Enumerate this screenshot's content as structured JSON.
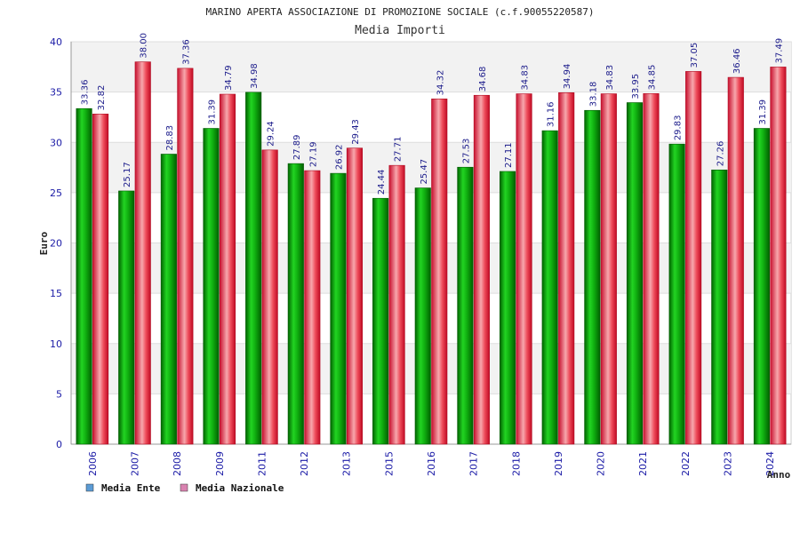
{
  "chart_data": {
    "type": "bar",
    "title": "MARINO APERTA ASSOCIAZIONE DI PROMOZIONE SOCIALE (c.f.90055220587)",
    "subtitle": "Media Importi",
    "xlabel": "Anno",
    "ylabel": "Euro",
    "ylim": [
      0,
      40
    ],
    "yticks": [
      0,
      5,
      10,
      15,
      20,
      25,
      30,
      35,
      40
    ],
    "grid": true,
    "legend_position": "bottom-left",
    "categories": [
      "2006",
      "2007",
      "2008",
      "2009",
      "2011",
      "2012",
      "2013",
      "2015",
      "2016",
      "2017",
      "2018",
      "2019",
      "2020",
      "2021",
      "2022",
      "2023",
      "2024"
    ],
    "series": [
      {
        "name": "Media Ente",
        "color": "#00a000",
        "legend_color": "#5b9bd5",
        "values": [
          33.36,
          25.17,
          28.83,
          31.39,
          34.98,
          27.89,
          26.92,
          24.44,
          25.47,
          27.53,
          27.11,
          31.16,
          33.18,
          33.95,
          29.83,
          27.26,
          31.39
        ],
        "labels": [
          "33.36",
          "25.17",
          "28.83",
          "31.39",
          "34.98",
          "27.89",
          "26.92",
          "24.44",
          "25.47",
          "27.53",
          "27.11",
          "31.16",
          "33.18",
          "33.95",
          "29.83",
          "27.26",
          "31.39"
        ]
      },
      {
        "name": "Media Nazionale",
        "color": "#e8283c",
        "legend_color": "#d982b0",
        "values": [
          32.82,
          38.0,
          37.36,
          34.79,
          29.24,
          27.19,
          29.43,
          27.71,
          34.32,
          34.68,
          34.83,
          34.94,
          34.83,
          34.85,
          37.05,
          36.46,
          37.49
        ],
        "labels": [
          "32.82",
          "38.00",
          "37.36",
          "34.79",
          "29.24",
          "27.19",
          "29.43",
          "27.71",
          "34.32",
          "34.68",
          "34.83",
          "34.94",
          "34.83",
          "34.85",
          "37.05",
          "36.46",
          "37.49"
        ]
      }
    ]
  }
}
